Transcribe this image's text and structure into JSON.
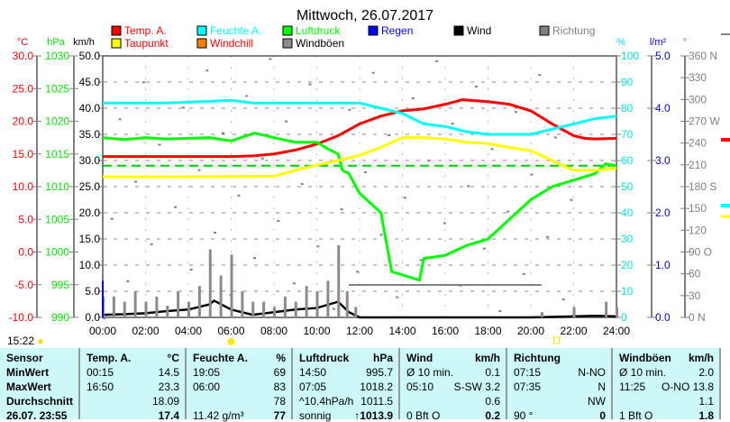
{
  "title": "Mittwoch, 26.07.2017",
  "clock": "15:22",
  "legend": [
    {
      "label": "Temp. A.",
      "color": "#ff0000"
    },
    {
      "label": "Feuchte A.",
      "color": "#00ffff"
    },
    {
      "label": "Luftdruck",
      "color": "#00ff00"
    },
    {
      "label": "Regen",
      "color": "#0000ff"
    },
    {
      "label": "Wind",
      "color": "#000000"
    },
    {
      "label": "Richtung",
      "color": "#808080"
    },
    {
      "label": "Taupunkt",
      "color": "#ffff00"
    },
    {
      "label": "Windchill",
      "color": "#ff8000"
    },
    {
      "label": "Windböen",
      "color": "#908890"
    }
  ],
  "chart_data": {
    "type": "line",
    "title": "Mittwoch, 26.07.2017",
    "x_ticks": [
      "00:00",
      "02:00",
      "04:00",
      "06:00",
      "08:00",
      "10:00",
      "12:00",
      "14:00",
      "16:00",
      "18:00",
      "20:00",
      "22:00",
      "24:00"
    ],
    "axes": {
      "temp": {
        "unit": "°C",
        "range": [
          -10,
          30
        ],
        "ticks": [
          "30.0",
          "25.0",
          "20.0",
          "15.0",
          "10.0",
          "5.0",
          "0.0",
          "-5.0",
          "-10.0"
        ]
      },
      "pressure": {
        "unit": "hPa",
        "range": [
          990,
          1030
        ],
        "ticks": [
          "1030",
          "1025",
          "1020",
          "1015",
          "1010",
          "1005",
          "1000",
          "995",
          "990"
        ]
      },
      "wind": {
        "unit": "km/h",
        "range": [
          0,
          50
        ],
        "ticks": [
          "50.0",
          "45.0",
          "40.0",
          "35.0",
          "30.0",
          "25.0",
          "20.0",
          "15.0",
          "10.0",
          "5.0",
          "0.0"
        ]
      },
      "humidity": {
        "unit": "%",
        "range": [
          0,
          100
        ],
        "ticks": [
          "100",
          "90",
          "80",
          "70",
          "60",
          "50",
          "40",
          "30",
          "20",
          "10",
          "0"
        ]
      },
      "rain": {
        "unit": "l/m²",
        "range": [
          0,
          5
        ],
        "ticks": [
          "5.0",
          "4.0",
          "3.0",
          "2.0",
          "1.0",
          "0.0"
        ]
      },
      "direction": {
        "unit": "°",
        "range": [
          0,
          360
        ],
        "ticks": [
          "360 N",
          "330",
          "300",
          "270 W",
          "240",
          "210",
          "180 S",
          "150",
          "120",
          "90  O",
          "60",
          "30",
          "0   N"
        ]
      }
    },
    "series": [
      {
        "name": "Temp. A.",
        "axis": "temp",
        "color": "#ff0000",
        "x": [
          0,
          2,
          4,
          6,
          7,
          8,
          9,
          10,
          11,
          12,
          13,
          14,
          15,
          16,
          16.8,
          18,
          19,
          20,
          21,
          22,
          22.5,
          23,
          24
        ],
        "y": [
          14.6,
          14.6,
          14.6,
          14.6,
          14.7,
          15,
          15.6,
          16.5,
          17.8,
          19.6,
          20.8,
          21.6,
          21.9,
          22.6,
          23.3,
          23,
          22.6,
          21.6,
          19.6,
          17.8,
          17.4,
          17.3,
          17.4
        ]
      },
      {
        "name": "Feuchte A.",
        "axis": "humidity",
        "color": "#00ffff",
        "x": [
          0,
          3,
          6,
          7,
          9,
          11,
          12,
          13,
          14,
          15,
          16,
          17,
          18,
          19,
          20,
          21,
          22,
          23,
          24
        ],
        "y": [
          82,
          82,
          83,
          82,
          82,
          82,
          82,
          80,
          78,
          74,
          73,
          71,
          70,
          70,
          70,
          72,
          74,
          76,
          77
        ]
      },
      {
        "name": "Luftdruck",
        "axis": "pressure",
        "color": "#00ff00",
        "x": [
          0,
          1,
          2,
          3,
          4,
          5,
          6,
          7.1,
          8,
          9,
          10,
          10.5,
          11,
          11.2,
          11.5,
          12,
          13,
          13.5,
          14,
          14.8,
          15,
          16,
          17,
          18,
          19,
          20,
          21,
          22,
          23,
          23.5,
          24
        ],
        "y": [
          1017.5,
          1017.2,
          1017.5,
          1017.3,
          1017.4,
          1017.5,
          1017,
          1018.2,
          1017.5,
          1016.8,
          1016.8,
          1015.8,
          1015,
          1012.5,
          1012,
          1009,
          1006,
          997,
          996.5,
          995.7,
          999,
          999.5,
          1001,
          1002,
          1005,
          1008,
          1010,
          1011,
          1012,
          1013.5,
          1013.2
        ]
      },
      {
        "name": "Taupunkt",
        "axis": "temp",
        "color": "#ffff00",
        "x": [
          0,
          4,
          8,
          9,
          10,
          11,
          12,
          13,
          14,
          15,
          16,
          17,
          18,
          19,
          20,
          21,
          22,
          23,
          24
        ],
        "y": [
          11.5,
          11.5,
          11.6,
          12.5,
          13.3,
          14,
          14.8,
          16,
          17.5,
          17.5,
          17.3,
          16.8,
          16.6,
          16,
          15.5,
          14,
          12.5,
          12.5,
          12.8
        ]
      },
      {
        "name": "Wind",
        "axis": "wind",
        "color": "#000000",
        "x": [
          0,
          1,
          2,
          3,
          4,
          5,
          5.2,
          6,
          7,
          8,
          9,
          10,
          11,
          11.5,
          12,
          20,
          23,
          24
        ],
        "y": [
          0.5,
          0.6,
          0.8,
          1.2,
          1.5,
          2.5,
          3.2,
          1.5,
          0.5,
          1,
          1.5,
          1.8,
          3,
          1,
          0,
          0,
          0.3,
          0.2
        ]
      },
      {
        "name": "Windböen",
        "axis": "wind",
        "color": "#908890",
        "type": "bar",
        "x": [
          0,
          0.5,
          1,
          1.5,
          2,
          2.5,
          3,
          3.5,
          4,
          4.5,
          5,
          5.5,
          6,
          6.5,
          7,
          7.5,
          8,
          8.5,
          9,
          9.5,
          10,
          10.5,
          11,
          11.4,
          11.8,
          20.5,
          22,
          23.5,
          24
        ],
        "y": [
          4,
          4,
          3,
          5,
          3,
          4,
          2,
          5,
          3,
          6,
          13,
          8,
          12,
          5,
          3,
          3,
          2,
          4,
          3,
          6,
          5,
          7,
          13.8,
          5,
          2,
          1,
          2,
          3,
          2
        ]
      },
      {
        "name": "Regen",
        "axis": "rain",
        "color": "#0000ff",
        "type": "bar",
        "x": [
          0
        ],
        "y": [
          0.7
        ]
      }
    ],
    "reference_lines": [
      {
        "axis": "pressure",
        "value": 1013.2,
        "color": "#00cc00",
        "style": "dashed"
      },
      {
        "axis": "wind",
        "value": 6.2,
        "color": "#808080",
        "from": 11.5,
        "to": 20.5
      }
    ]
  },
  "table": {
    "headers": [
      [
        "Sensor",
        ""
      ],
      [
        "Temp. A.",
        "°C"
      ],
      [
        "Feuchte A.",
        "%"
      ],
      [
        "Luftdruck",
        "hPa"
      ],
      [
        "Wind",
        "km/h"
      ],
      [
        "Richtung",
        ""
      ],
      [
        "Windböen",
        "km/h"
      ]
    ],
    "rows": [
      {
        "label": "MinWert",
        "cells": [
          [
            "00:15",
            "14.5"
          ],
          [
            "19:05",
            "69"
          ],
          [
            "14:50",
            "995.7"
          ],
          [
            "Ø 10 min.",
            "0.1"
          ],
          [
            "07:15",
            "N-NO"
          ],
          [
            "Ø 10 min.",
            "2.0"
          ]
        ]
      },
      {
        "label": "MaxWert",
        "cells": [
          [
            "16:50",
            "23.3"
          ],
          [
            "06:00",
            "83"
          ],
          [
            "07:05",
            "1018.2"
          ],
          [
            "05:10",
            "S-SW 3.2"
          ],
          [
            "07:35",
            "N"
          ],
          [
            "11:25",
            "O-NO 13.8"
          ]
        ]
      },
      {
        "label": "Durchschnitt",
        "cells": [
          [
            "",
            "18.09"
          ],
          [
            "",
            "78"
          ],
          [
            "^10.4hPa/h",
            "1011.5"
          ],
          [
            "",
            "0.6"
          ],
          [
            "",
            "NW"
          ],
          [
            "",
            "1.1"
          ]
        ]
      },
      {
        "label": "26.07. 23:55",
        "cells": [
          [
            "",
            "17.4"
          ],
          [
            "11.42 g/m³",
            "77"
          ],
          [
            "sonnig",
            "↑1013.9"
          ],
          [
            "0 Bft O",
            "0.2"
          ],
          [
            "90 °",
            "0"
          ],
          [
            "1 Bft O",
            "1.8"
          ]
        ]
      }
    ]
  }
}
